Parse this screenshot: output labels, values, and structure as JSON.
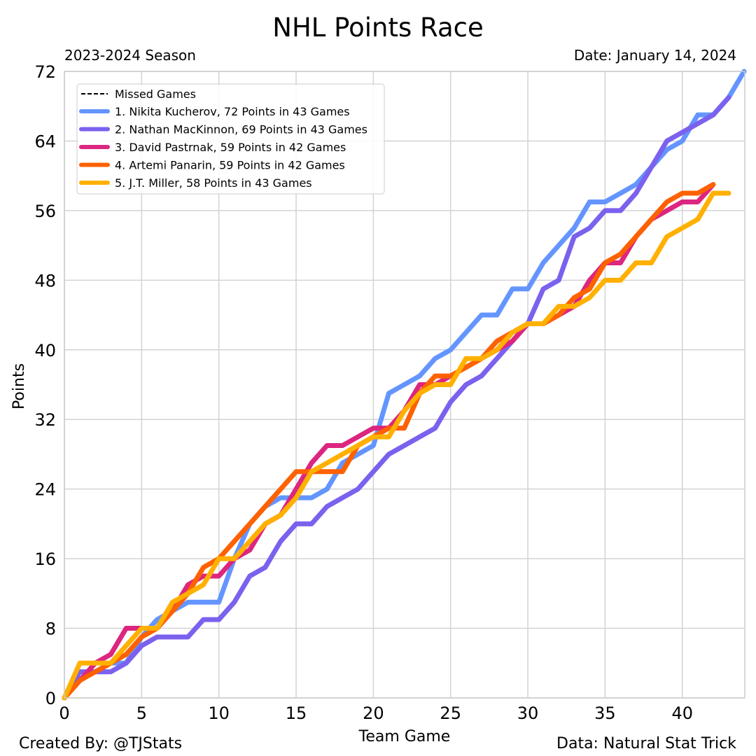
{
  "chart_data": {
    "type": "line",
    "title": "NHL Points Race",
    "subtitle_left": "2023-2024 Season",
    "subtitle_right": "Date: January 14, 2024",
    "xlabel": "Team Game",
    "ylabel": "Points",
    "xlim": [
      0,
      44
    ],
    "ylim": [
      0,
      72
    ],
    "xticks": [
      0,
      5,
      10,
      15,
      20,
      25,
      30,
      35,
      40
    ],
    "yticks": [
      0,
      8,
      16,
      24,
      32,
      40,
      48,
      56,
      64,
      72
    ],
    "grid": true,
    "legend_placement": "top-left",
    "legend_missed": "Missed Games",
    "footer_left": "Created By: @TJStats",
    "footer_right": "Data: Natural Stat Trick",
    "series": [
      {
        "name": "1. Nikita Kucherov, 72 Points in 43 Games",
        "color": "#6495ff",
        "values": [
          0,
          3,
          3,
          4,
          4,
          7,
          9,
          10,
          11,
          11,
          11,
          16,
          20,
          22,
          23,
          23,
          23,
          24,
          27,
          28,
          29,
          35,
          36,
          37,
          39,
          40,
          42,
          44,
          44,
          47,
          47,
          50,
          52,
          54,
          57,
          57,
          58,
          59,
          61,
          63,
          64,
          67,
          67,
          69,
          72
        ]
      },
      {
        "name": "2. Nathan MacKinnon, 69 Points in 43 Games",
        "color": "#7b61ee",
        "values": [
          0,
          3,
          3,
          3,
          4,
          6,
          7,
          7,
          7,
          9,
          9,
          11,
          14,
          15,
          18,
          20,
          20,
          22,
          23,
          24,
          26,
          28,
          29,
          30,
          31,
          34,
          36,
          37,
          39,
          41,
          43,
          47,
          48,
          53,
          54,
          56,
          56,
          58,
          61,
          64,
          65,
          66,
          67,
          69
        ]
      },
      {
        "name": "3. David Pastrnak, 59 Points in 42 Games",
        "color": "#dc267f",
        "values": [
          0,
          2,
          4,
          5,
          8,
          8,
          8,
          10,
          13,
          14,
          14,
          16,
          17,
          20,
          21,
          24,
          27,
          29,
          29,
          30,
          31,
          31,
          33,
          36,
          36,
          37,
          38,
          39,
          40,
          41,
          43,
          43,
          44,
          45,
          48,
          50,
          50,
          53,
          55,
          56,
          57,
          57,
          59
        ]
      },
      {
        "name": "4. Artemi Panarin, 59 Points in 42 Games",
        "color": "#fe6100",
        "values": [
          0,
          2,
          3,
          4,
          5,
          7,
          8,
          10,
          12,
          15,
          16,
          18,
          20,
          22,
          24,
          26,
          26,
          26,
          26,
          29,
          30,
          31,
          31,
          35,
          37,
          37,
          38,
          39,
          41,
          42,
          43,
          43,
          44,
          46,
          47,
          50,
          51,
          53,
          55,
          57,
          58,
          58,
          59
        ]
      },
      {
        "name": "5. J.T. Miller, 58 Points in 43 Games",
        "color": "#ffb000",
        "values": [
          0,
          4,
          4,
          4,
          6,
          8,
          8,
          11,
          12,
          13,
          16,
          16,
          18,
          20,
          21,
          23,
          26,
          27,
          28,
          29,
          30,
          30,
          33,
          35,
          36,
          36,
          39,
          39,
          40,
          42,
          43,
          43,
          45,
          45,
          46,
          48,
          48,
          50,
          50,
          53,
          54,
          55,
          58,
          58
        ]
      }
    ]
  }
}
